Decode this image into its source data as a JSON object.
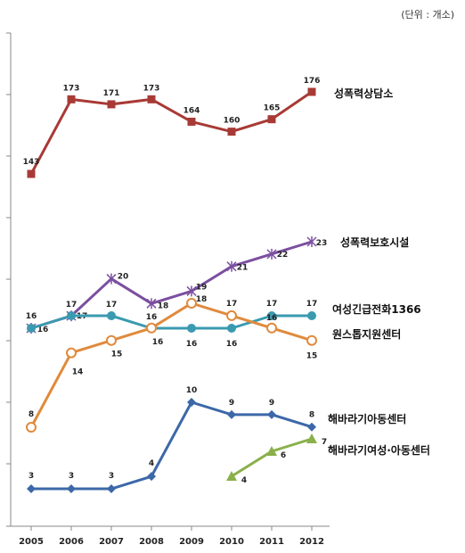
{
  "unit_label": "(단위 : 개소)",
  "chart_data": {
    "type": "line",
    "x": [
      "2005",
      "2006",
      "2007",
      "2008",
      "2009",
      "2010",
      "2011",
      "2012"
    ],
    "ylim": [
      0,
      190
    ],
    "grid": false,
    "series": [
      {
        "name": "성폭력상담소",
        "color": "#a83a35",
        "marker": "square",
        "values": [
          143,
          173,
          171,
          173,
          164,
          160,
          165,
          176
        ]
      },
      {
        "name": "성폭력보호시설",
        "color": "#7b4fa0",
        "marker": "star",
        "values": [
          16,
          17,
          20,
          18,
          19,
          21,
          22,
          23
        ]
      },
      {
        "name": "여성긴급전화1366",
        "color": "#3a9ab0",
        "marker": "circle",
        "values": [
          16,
          17,
          17,
          16,
          16,
          16,
          17,
          17
        ]
      },
      {
        "name": "원스톱지원센터",
        "color": "#e08a3c",
        "marker": "open-circle",
        "values": [
          8,
          14,
          15,
          16,
          18,
          17,
          16,
          15
        ]
      },
      {
        "name": "해바라기아동센터",
        "color": "#3c68a8",
        "marker": "diamond",
        "values": [
          3,
          3,
          3,
          4,
          10,
          9,
          9,
          8
        ]
      },
      {
        "name": "해바라기여성·아동센터",
        "color": "#8ab04a",
        "marker": "triangle",
        "values": [
          null,
          null,
          null,
          null,
          null,
          4,
          6,
          7
        ]
      }
    ]
  }
}
